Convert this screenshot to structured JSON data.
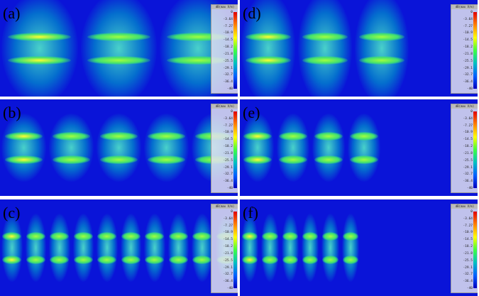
{
  "panels": [
    {
      "label": "(a)",
      "id": "a",
      "lanes": "broad"
    },
    {
      "label": "(b)",
      "id": "b",
      "lanes": "cells"
    },
    {
      "label": "(c)",
      "id": "c",
      "lanes": "dense"
    },
    {
      "label": "(d)",
      "id": "d",
      "lanes": "decay"
    },
    {
      "label": "(e)",
      "id": "e",
      "lanes": "decay-cells"
    },
    {
      "label": "(f)",
      "id": "f",
      "lanes": "decay-dense"
    }
  ],
  "colorbar": {
    "title": "dB(max V/m)",
    "ticks": [
      "0",
      "-3.64",
      "-7.27",
      "-10.9",
      "-14.5",
      "-18.2",
      "-21.8",
      "-25.5",
      "-29.1",
      "-32.7",
      "-36.4",
      "-40"
    ],
    "colors": [
      "#e00000",
      "#ff8000",
      "#ffff00",
      "#40ff40",
      "#00c0c0",
      "#0060ff",
      "#0000c0"
    ]
  }
}
